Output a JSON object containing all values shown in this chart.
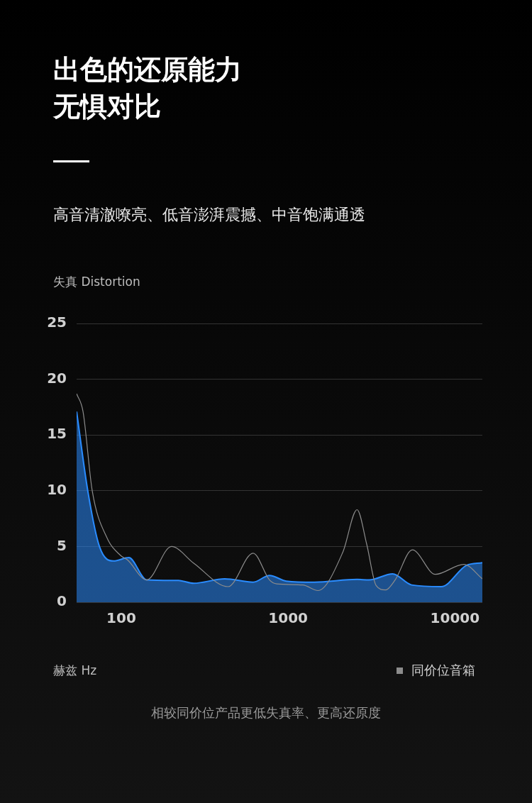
{
  "chart_data": {
    "type": "line",
    "title": "出色的还原能力无惧对比",
    "subtitle": "高音清澈嘹亮、低音澎湃震撼、中音饱满通透",
    "ylabel": "失真 Distortion",
    "xlabel": "赫兹 Hz",
    "annotations": [
      "相较同价位产品更低失真率、更高还原度"
    ],
    "log": "x",
    "xlim": [
      54,
      14600
    ],
    "xticks": [
      100,
      1000,
      10000
    ],
    "ylim": [
      0,
      25
    ],
    "yticks": [
      0,
      5,
      10,
      15,
      20,
      25
    ],
    "grid": "y",
    "legend": "bottom right",
    "series": [
      {
        "type": "area",
        "color": "#2a8cff",
        "x": [
          54,
          63,
          74,
          90,
          111,
          142,
          220,
          272,
          417,
          617,
          774,
          975,
          1440,
          2590,
          3060,
          4230,
          5500,
          8280,
          11700,
          14600
        ],
        "values": [
          17.1,
          10,
          5,
          3.7,
          4,
          2,
          1.95,
          1.7,
          2.1,
          1.8,
          2.4,
          1.9,
          1.8,
          2.05,
          2,
          2.55,
          1.55,
          1.4,
          3.3,
          3.55
        ]
      },
      {
        "name": "同价位音箱",
        "color": "#8c8c8c",
        "x": [
          54,
          59,
          67,
          82,
          99,
          109,
          142,
          200,
          272,
          437,
          617,
          774,
          855,
          1225,
          1510,
          2130,
          2590,
          2960,
          3370,
          3840,
          4380,
          5560,
          7630,
          11300,
          14600
        ],
        "values": [
          18.7,
          17.1,
          10,
          5.8,
          4.2,
          3.8,
          2,
          5,
          3.5,
          1.4,
          4.4,
          2,
          1.65,
          1.55,
          1.05,
          4.5,
          8.3,
          5.2,
          1.5,
          1.1,
          2,
          4.7,
          2.5,
          3.4,
          2.1
        ]
      }
    ]
  }
}
